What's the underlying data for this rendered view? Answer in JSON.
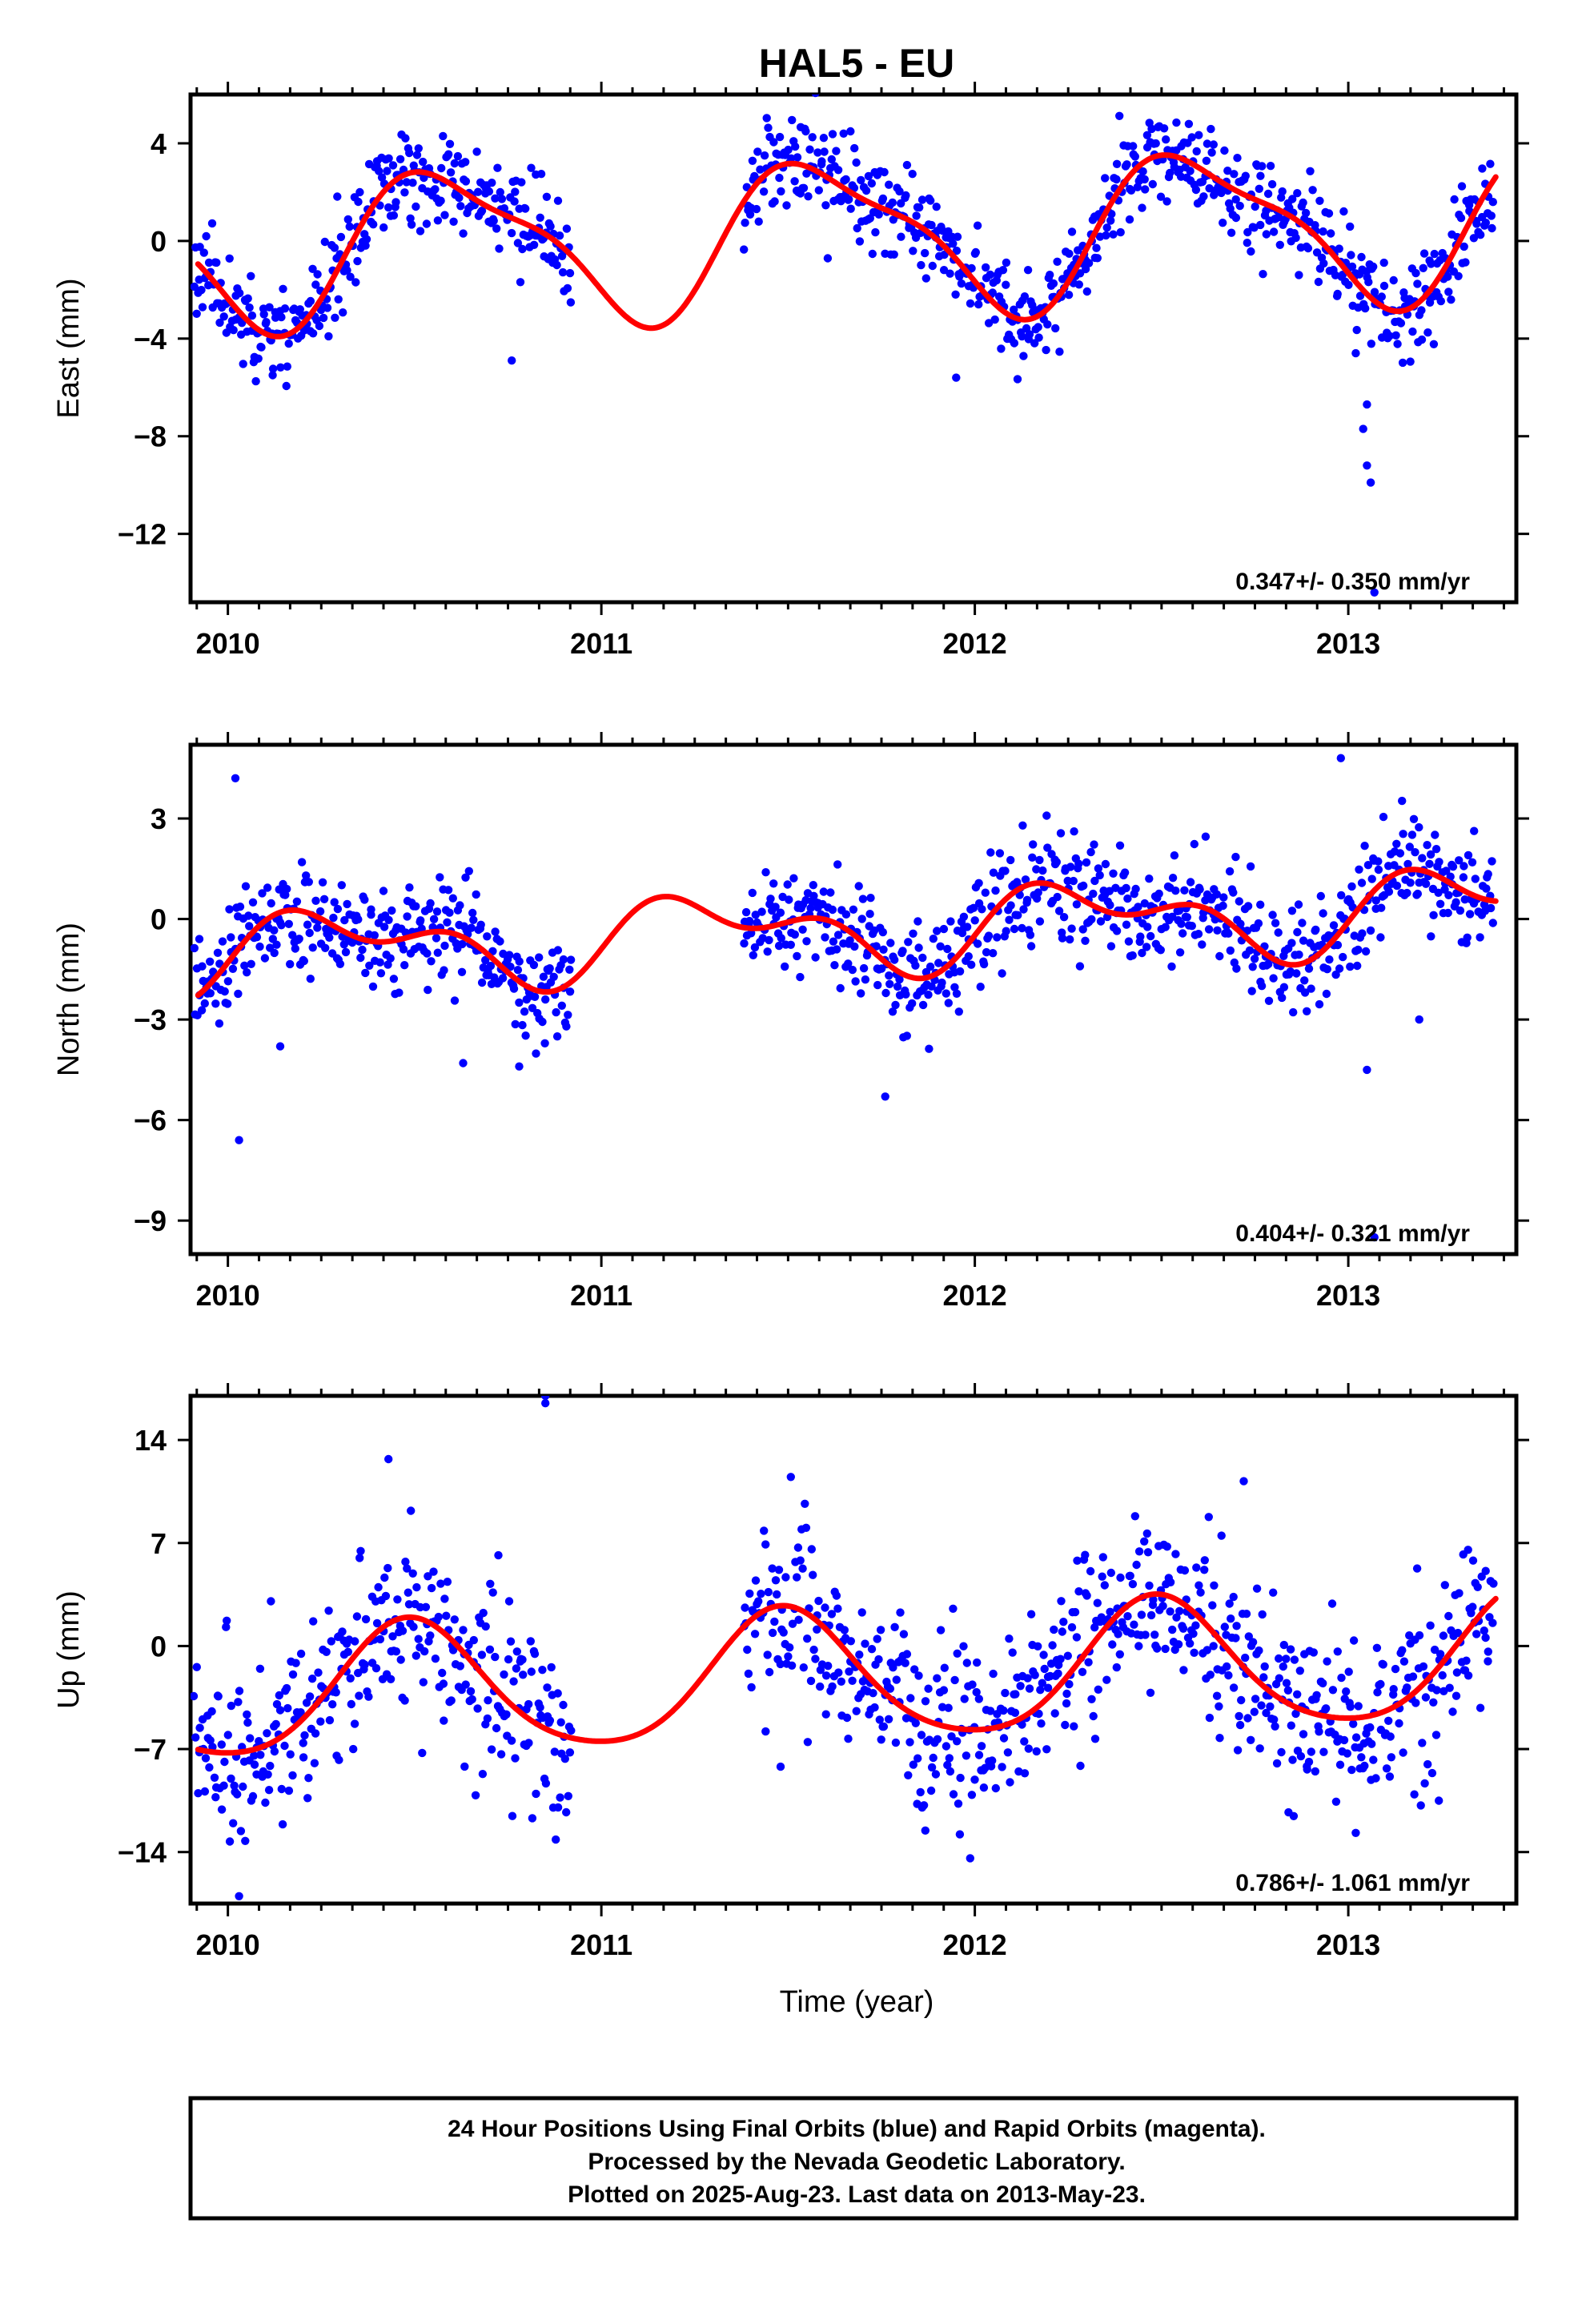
{
  "figure": {
    "title": "HAL5 - EU",
    "xlabel": "Time (year)",
    "footnote": [
      "24 Hour Positions Using Final Orbits (blue) and Rapid Orbits (magenta).",
      "Processed by the Nevada Geodetic Laboratory.",
      "Plotted on 2025-Aug-23. Last data on 2013-May-23."
    ],
    "colors": {
      "final_orbits": "#0000ff",
      "rapid_orbits": "#ff00ff",
      "model": "#ff0000",
      "frame": "#000000"
    }
  },
  "chart_data": [
    {
      "type": "scatter",
      "component": "East",
      "ylabel": "East (mm)",
      "rate_label": "0.347+/- 0.350 mm/yr",
      "xlim": [
        2009.9,
        2013.45
      ],
      "ylim": [
        -14.8,
        6.0
      ],
      "xticks": [
        2010,
        2011,
        2012,
        2013
      ],
      "xtick_labels": [
        "2010",
        "2011",
        "2012",
        "2013"
      ],
      "yticks": [
        4,
        0,
        -4,
        -8,
        -12
      ],
      "ytick_labels": [
        "4",
        "0",
        "−4",
        "−8",
        "−12"
      ],
      "grid": false,
      "data_gap": [
        2010.92,
        2011.38
      ],
      "model": {
        "name": "",
        "offset": 0.2,
        "trend": 0.347,
        "annual": [
          -2.5,
          -1.6
        ],
        "semiannual": [
          0.5,
          -0.7
        ]
      },
      "series": [
        {
          "orbit": "final",
          "scatter_sd": 0.95,
          "seed": 11,
          "outliers": [
            [
              2010.12,
              -5.5
            ],
            [
              2010.76,
              -4.9
            ],
            [
              2011.95,
              -5.6
            ],
            [
              2013.05,
              -6.7
            ],
            [
              2013.04,
              -7.7
            ],
            [
              2013.05,
              -9.2
            ],
            [
              2013.06,
              -9.9
            ],
            [
              2013.07,
              -14.4
            ],
            [
              2013.02,
              -4.6
            ]
          ]
        }
      ]
    },
    {
      "type": "scatter",
      "component": "North",
      "ylabel": "North (mm)",
      "rate_label": "0.404+/- 0.321 mm/yr",
      "xlim": [
        2009.9,
        2013.45
      ],
      "ylim": [
        -10.0,
        5.2
      ],
      "xticks": [
        2010,
        2011,
        2012,
        2013
      ],
      "xtick_labels": [
        "2010",
        "2011",
        "2012",
        "2013"
      ],
      "yticks": [
        3,
        0,
        -3,
        -6,
        -9
      ],
      "ytick_labels": [
        "3",
        "0",
        "−3",
        "−6",
        "−9"
      ],
      "grid": false,
      "data_gap": [
        2010.92,
        2011.38
      ],
      "model": {
        "name": "",
        "offset": -0.35,
        "trend": 0.404,
        "annual": [
          -0.3,
          0.9
        ],
        "semiannual": [
          0.0,
          0.65
        ]
      },
      "series": [
        {
          "orbit": "final",
          "scatter_sd": 0.75,
          "seed": 23,
          "outliers": [
            [
              2010.03,
              -6.6
            ],
            [
              2010.14,
              -3.8
            ],
            [
              2010.63,
              -4.3
            ],
            [
              2010.78,
              -4.4
            ],
            [
              2011.76,
              -5.3
            ],
            [
              2013.05,
              -4.5
            ],
            [
              2013.07,
              -9.5
            ],
            [
              2013.19,
              -3.0
            ],
            [
              2010.02,
              4.2
            ],
            [
              2012.98,
              4.8
            ]
          ]
        }
      ]
    },
    {
      "type": "scatter",
      "component": "Up",
      "ylabel": "Up (mm)",
      "rate_label": "0.786+/- 1.061 mm/yr",
      "xlim": [
        2009.9,
        2013.45
      ],
      "ylim": [
        -17.5,
        17.0
      ],
      "xticks": [
        2010,
        2011,
        2012,
        2013
      ],
      "xtick_labels": [
        "2010",
        "2011",
        "2012",
        "2013"
      ],
      "yticks": [
        14,
        7,
        0,
        -7,
        -14
      ],
      "ytick_labels": [
        "14",
        "7",
        "0",
        "−7",
        "−14"
      ],
      "grid": false,
      "data_gap": [
        2010.92,
        2011.38
      ],
      "model": {
        "name": "",
        "offset": -2.2,
        "trend": 0.786,
        "annual": [
          -4.4,
          0.3
        ],
        "semiannual": [
          0.6,
          -0.2
        ]
      },
      "series": [
        {
          "orbit": "final",
          "scatter_sd": 3.1,
          "seed": 37,
          "outliers": [
            [
              2010.03,
              -17.0
            ],
            [
              2010.85,
              16.5
            ],
            [
              2010.85,
              17.0
            ],
            [
              2010.43,
              12.7
            ],
            [
              2011.48,
              -8.2
            ],
            [
              2011.96,
              -12.8
            ],
            [
              2012.84,
              -11.3
            ],
            [
              2013.02,
              -12.7
            ],
            [
              2012.72,
              11.2
            ]
          ]
        }
      ]
    }
  ]
}
